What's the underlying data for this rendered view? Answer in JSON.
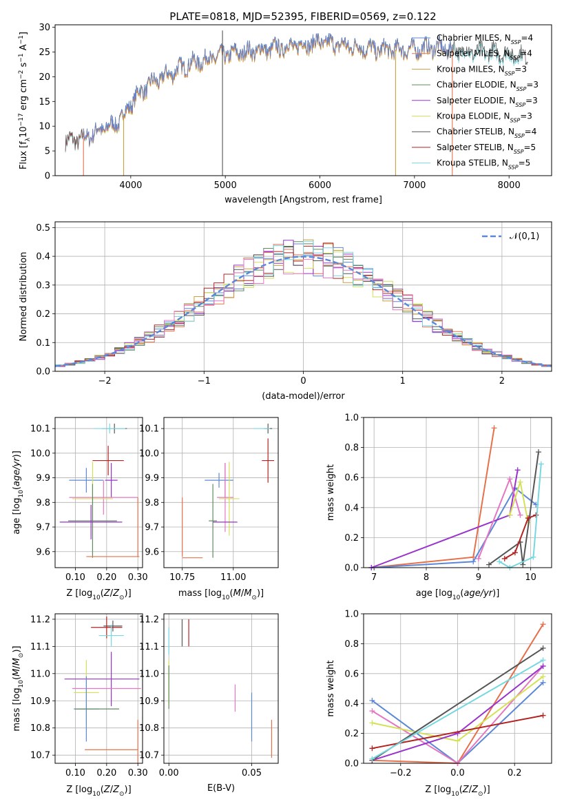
{
  "figure": {
    "title": "PLATE=0818, MJD=52395, FIBERID=0569, z=0.122"
  },
  "chart_data": [
    {
      "id": "spectrum",
      "type": "line",
      "xlabel": "wavelength [Angstrom, rest frame]",
      "ylabel": "Flux [f_λ 10^-17 erg cm^-2 s^-1 A^-1]",
      "xlim": [
        3200,
        8450
      ],
      "ylim": [
        0,
        30.5
      ],
      "xticks": [
        4000,
        5000,
        6000,
        7000,
        8000
      ],
      "yticks": [
        0,
        5,
        10,
        15,
        20,
        25,
        30
      ],
      "legend_position": "upper-right",
      "series": [
        {
          "name": "Chabrier MILES, N_SSP=4",
          "color": "#5b87d6"
        },
        {
          "name": "Salpeter MILES, N_SSP=4",
          "color": "#e6704a"
        },
        {
          "name": "Kroupa MILES, N_SSP=3",
          "color": "#c8a040"
        },
        {
          "name": "Chabrier ELODIE, N_SSP=3",
          "color": "#5e8a5e"
        },
        {
          "name": "Salpeter ELODIE, N_SSP=3",
          "color": "#9932cc"
        },
        {
          "name": "Kroupa ELODIE, N_SSP=3",
          "color": "#d4e157"
        },
        {
          "name": "Chabrier STELIB, N_SSP=4",
          "color": "#555555"
        },
        {
          "name": "Salpeter STELIB, N_SSP=5",
          "color": "#b22222"
        },
        {
          "name": "Kroupa STELIB, N_SSP=5",
          "color": "#76d7e0"
        }
      ],
      "continuum": {
        "x": [
          3300,
          3500,
          3700,
          3850,
          3950,
          4050,
          4200,
          4400,
          4600,
          4800,
          5000,
          5200,
          5400,
          5600,
          5800,
          6000,
          6200,
          6400,
          6600,
          6800,
          7000,
          7200,
          7400,
          7600,
          7800,
          8000,
          8200
        ],
        "y": [
          7,
          7.5,
          9.5,
          10.5,
          13,
          16,
          18.5,
          20.5,
          22.5,
          23.5,
          24.5,
          25,
          25.5,
          26,
          26.5,
          27,
          26.5,
          26,
          25.5,
          25.5,
          25.5,
          26,
          25.5,
          25,
          25,
          24.5,
          24
        ]
      },
      "drops": [
        {
          "x": 3500,
          "series": "Salpeter MILES"
        },
        {
          "x": 3925,
          "series": "Kroupa MILES"
        },
        {
          "x": 6800,
          "series": "Kroupa MILES"
        },
        {
          "x": 7400,
          "series": "Salpeter MILES"
        },
        {
          "x": 4970,
          "series": "Chabrier STELIB"
        }
      ]
    },
    {
      "id": "residuals",
      "type": "histogram",
      "xlabel": "(data-model)/error",
      "ylabel": "Normed distribution",
      "xlim": [
        -2.5,
        2.5
      ],
      "ylim": [
        0,
        0.52
      ],
      "xticks": [
        -2,
        -1,
        0,
        1,
        2
      ],
      "yticks": [
        0,
        0.1,
        0.2,
        0.3,
        0.4,
        0.5
      ],
      "bin_width": 0.1,
      "legend": [
        {
          "name": "𝒩(0,1)",
          "color": "#5b87d6",
          "style": "dashed"
        }
      ],
      "gaussian": {
        "mean": 0,
        "sigma": 1
      }
    },
    {
      "id": "z_vs_age",
      "type": "errorbar",
      "xlabel": "Z [log10(Z/Z☉)]",
      "ylabel": "age [log10(age/yr)]",
      "xlim": [
        0.035,
        0.315
      ],
      "ylim": [
        9.535,
        10.145
      ],
      "xticks": [
        0.1,
        0.2,
        0.3
      ],
      "yticks": [
        9.6,
        9.7,
        9.8,
        9.9,
        10.0,
        10.1
      ],
      "points": [
        {
          "x": 0.225,
          "y": 10.1,
          "xerr": 0.04,
          "yerr": 0.02,
          "color": "#555555"
        },
        {
          "x": 0.21,
          "y": 10.1,
          "xerr": 0.05,
          "yerr": 0.02,
          "color": "#76d7e0"
        },
        {
          "x": 0.205,
          "y": 9.97,
          "xerr": 0.05,
          "yerr": 0.06,
          "color": "#b22222"
        },
        {
          "x": 0.135,
          "y": 9.89,
          "xerr": 0.055,
          "yerr": 0.05,
          "color": "#5b87d6"
        },
        {
          "x": 0.215,
          "y": 9.89,
          "xerr": 0.02,
          "yerr": 0.07,
          "color": "#9932cc"
        },
        {
          "x": 0.19,
          "y": 9.82,
          "xerr": 0.11,
          "yerr": 0.07,
          "color": "#e377c2"
        },
        {
          "x": 0.155,
          "y": 9.815,
          "xerr": 0.065,
          "yerr": 0.15,
          "color": "#d4e157"
        },
        {
          "x": 0.155,
          "y": 9.725,
          "xerr": 0.078,
          "yerr": 0.15,
          "color": "#5e8a5e"
        },
        {
          "x": 0.15,
          "y": 9.72,
          "xerr": 0.1,
          "yerr": 0.07,
          "color": "#9932cc"
        },
        {
          "x": 0.22,
          "y": 9.58,
          "xerr": 0.085,
          "yerr": 0.0,
          "color": "#e6704a"
        },
        {
          "x": 0.3,
          "y": 9.7,
          "xerr": 0.0,
          "yerr": 0.12,
          "color": "#e6704a"
        }
      ]
    },
    {
      "id": "mass_vs_age",
      "type": "errorbar",
      "xlabel": "mass [log10(M/M☉)]",
      "ylabel": "",
      "xlim": [
        10.66,
        11.22
      ],
      "ylim": [
        9.535,
        10.145
      ],
      "xticks": [
        10.75,
        11.0
      ],
      "xtick_labels": [
        "10.75",
        "11.00"
      ],
      "yticks": [
        9.6,
        9.7,
        9.8,
        9.9,
        10.0,
        10.1
      ],
      "points": [
        {
          "x": 11.17,
          "y": 10.1,
          "xerr": 0.02,
          "yerr": 0.02,
          "color": "#555555"
        },
        {
          "x": 11.14,
          "y": 10.1,
          "xerr": 0.04,
          "yerr": 0.0,
          "color": "#76d7e0"
        },
        {
          "x": 11.17,
          "y": 9.97,
          "xerr": 0.03,
          "yerr": 0.09,
          "color": "#b22222"
        },
        {
          "x": 10.93,
          "y": 9.89,
          "xerr": 0.07,
          "yerr": 0.03,
          "color": "#5b87d6"
        },
        {
          "x": 10.96,
          "y": 9.89,
          "xerr": 0.0,
          "yerr": 0.07,
          "color": "#9932cc"
        },
        {
          "x": 10.96,
          "y": 9.82,
          "xerr": 0.04,
          "yerr": 0.14,
          "color": "#e377c2"
        },
        {
          "x": 10.98,
          "y": 9.815,
          "xerr": 0.05,
          "yerr": 0.15,
          "color": "#d4e157"
        },
        {
          "x": 10.9,
          "y": 9.725,
          "xerr": 0.02,
          "yerr": 0.15,
          "color": "#5e8a5e"
        },
        {
          "x": 10.96,
          "y": 9.72,
          "xerr": 0.06,
          "yerr": 0.0,
          "color": "#9932cc"
        },
        {
          "x": 10.8,
          "y": 9.575,
          "xerr": 0.05,
          "yerr": 0.0,
          "color": "#e6704a"
        },
        {
          "x": 10.75,
          "y": 9.7,
          "xerr": 0.0,
          "yerr": 0.12,
          "color": "#e6704a"
        }
      ]
    },
    {
      "id": "age_vs_weight",
      "type": "line",
      "xlabel": "age [log10(age/yr)]",
      "ylabel": "mass weight",
      "xlim": [
        6.8,
        10.4
      ],
      "ylim": [
        0,
        1.0
      ],
      "xticks": [
        7,
        8,
        9,
        10
      ],
      "yticks": [
        0.0,
        0.2,
        0.4,
        0.6,
        0.8,
        1.0
      ],
      "series": [
        {
          "color": "#e6704a",
          "x": [
            6.95,
            8.9,
            9.3
          ],
          "y": [
            0.0,
            0.07,
            0.93
          ]
        },
        {
          "color": "#5b87d6",
          "x": [
            6.95,
            8.9,
            9.7,
            10.1
          ],
          "y": [
            0.0,
            0.04,
            0.53,
            0.42
          ]
        },
        {
          "color": "#9932cc",
          "x": [
            6.95,
            9.6,
            9.75
          ],
          "y": [
            0.0,
            0.35,
            0.65
          ]
        },
        {
          "color": "#e377c2",
          "x": [
            9.0,
            9.6,
            9.8
          ],
          "y": [
            0.06,
            0.59,
            0.35
          ]
        },
        {
          "color": "#d4e157",
          "x": [
            9.6,
            9.8,
            9.95
          ],
          "y": [
            0.35,
            0.57,
            0.3
          ]
        },
        {
          "color": "#555555",
          "x": [
            9.2,
            9.8,
            9.85,
            10.15
          ],
          "y": [
            0.02,
            0.17,
            0.02,
            0.77
          ]
        },
        {
          "color": "#b22222",
          "x": [
            9.5,
            9.7,
            9.95,
            10.1
          ],
          "y": [
            0.06,
            0.1,
            0.33,
            0.35
          ]
        },
        {
          "color": "#76d7e0",
          "x": [
            9.4,
            9.6,
            10.05,
            10.2
          ],
          "y": [
            0.04,
            0.0,
            0.07,
            0.69
          ]
        }
      ]
    },
    {
      "id": "z_vs_mass",
      "type": "errorbar",
      "xlabel": "Z [log10(Z/Z☉)]",
      "ylabel": "mass [log10(M/M☉)]",
      "xlim": [
        0.035,
        0.315
      ],
      "ylim": [
        10.67,
        11.22
      ],
      "xticks": [
        0.1,
        0.2,
        0.3
      ],
      "yticks": [
        10.7,
        10.8,
        10.9,
        11.0,
        11.1,
        11.2
      ],
      "points": [
        {
          "x": 0.22,
          "y": 11.175,
          "xerr": 0.03,
          "yerr": 0.02,
          "color": "#555555"
        },
        {
          "x": 0.2,
          "y": 11.17,
          "xerr": 0.05,
          "yerr": 0.04,
          "color": "#b22222"
        },
        {
          "x": 0.215,
          "y": 11.14,
          "xerr": 0.04,
          "yerr": 0.04,
          "color": "#76d7e0"
        },
        {
          "x": 0.185,
          "y": 10.98,
          "xerr": 0.12,
          "yerr": 0.0,
          "color": "#9932cc"
        },
        {
          "x": 0.215,
          "y": 10.98,
          "xerr": 0.0,
          "yerr": 0.1,
          "color": "#9932cc"
        },
        {
          "x": 0.2,
          "y": 10.945,
          "xerr": 0.11,
          "yerr": 0.0,
          "color": "#e377c2"
        },
        {
          "x": 0.135,
          "y": 10.93,
          "xerr": 0.04,
          "yerr": 0.12,
          "color": "#d4e157"
        },
        {
          "x": 0.135,
          "y": 10.87,
          "xerr": 0.04,
          "yerr": 0.12,
          "color": "#5b87d6"
        },
        {
          "x": 0.17,
          "y": 10.87,
          "xerr": 0.07,
          "yerr": 0.0,
          "color": "#5e8a5e"
        },
        {
          "x": 0.215,
          "y": 10.72,
          "xerr": 0.085,
          "yerr": 0.0,
          "color": "#e6704a"
        },
        {
          "x": 0.3,
          "y": 10.75,
          "xerr": 0.0,
          "yerr": 0.08,
          "color": "#e6704a"
        }
      ]
    },
    {
      "id": "ebv_vs_mass",
      "type": "errorbar",
      "xlabel": "E(B-V)",
      "ylabel": "",
      "xlim": [
        -0.003,
        0.066
      ],
      "ylim": [
        10.67,
        11.22
      ],
      "xticks": [
        0.0,
        0.05
      ],
      "xtick_labels": [
        "0.00",
        "0.05"
      ],
      "yticks": [
        10.7,
        10.8,
        10.9,
        11.0,
        11.1,
        11.2
      ],
      "points": [
        {
          "x": 0.008,
          "y": 11.15,
          "xerr": 0,
          "yerr": 0.05,
          "color": "#555555"
        },
        {
          "x": 0.012,
          "y": 11.15,
          "xerr": 0,
          "yerr": 0.05,
          "color": "#b22222"
        },
        {
          "x": 0.0,
          "y": 11.12,
          "xerr": 0,
          "yerr": 0.05,
          "color": "#76d7e0"
        },
        {
          "x": 0.0,
          "y": 10.97,
          "xerr": 0,
          "yerr": 0.08,
          "color": "#d4e157"
        },
        {
          "x": 0.0,
          "y": 10.95,
          "xerr": 0,
          "yerr": 0.08,
          "color": "#5e8a5e"
        },
        {
          "x": 0.04,
          "y": 10.91,
          "xerr": 0,
          "yerr": 0.05,
          "color": "#e377c2"
        },
        {
          "x": 0.05,
          "y": 10.84,
          "xerr": 0,
          "yerr": 0.09,
          "color": "#5b87d6"
        },
        {
          "x": 0.062,
          "y": 10.76,
          "xerr": 0,
          "yerr": 0.07,
          "color": "#e6704a"
        }
      ]
    },
    {
      "id": "z_vs_weight",
      "type": "line",
      "xlabel": "Z [log10(Z/Z☉)]",
      "ylabel": "mass weight",
      "xlim": [
        -0.33,
        0.33
      ],
      "ylim": [
        0,
        1.0
      ],
      "xticks": [
        -0.2,
        0.0,
        0.2
      ],
      "xtick_labels": [
        "−0.2",
        "0.0",
        "0.2"
      ],
      "yticks": [
        0.0,
        0.2,
        0.4,
        0.6,
        0.8,
        1.0
      ],
      "series": [
        {
          "color": "#5b87d6",
          "x": [
            -0.3,
            0.0,
            0.3
          ],
          "y": [
            0.42,
            0.0,
            0.54
          ]
        },
        {
          "color": "#e6704a",
          "x": [
            -0.3,
            0.0,
            0.3
          ],
          "y": [
            0.02,
            0.0,
            0.93
          ]
        },
        {
          "color": "#e377c2",
          "x": [
            -0.3,
            0.0,
            0.3
          ],
          "y": [
            0.35,
            0.0,
            0.65
          ]
        },
        {
          "color": "#d4e157",
          "x": [
            -0.3,
            0.0,
            0.3
          ],
          "y": [
            0.27,
            0.15,
            0.58
          ]
        },
        {
          "color": "#9932cc",
          "x": [
            -0.3,
            0.0,
            0.3
          ],
          "y": [
            0.02,
            0.2,
            0.65
          ]
        },
        {
          "color": "#555555",
          "x": [
            -0.3,
            0.3
          ],
          "y": [
            0.02,
            0.77
          ]
        },
        {
          "color": "#b22222",
          "x": [
            -0.3,
            0.3
          ],
          "y": [
            0.1,
            0.32
          ]
        },
        {
          "color": "#76d7e0",
          "x": [
            -0.3,
            0.3
          ],
          "y": [
            0.03,
            0.69
          ]
        }
      ]
    }
  ]
}
